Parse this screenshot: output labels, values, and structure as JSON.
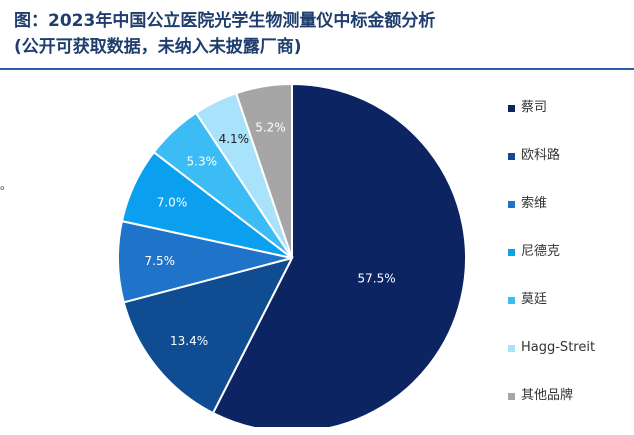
{
  "title": {
    "line1": "图：2023年中国公立医院光学生物测量仪中标金额分析",
    "line2": "(公开可获取数据，未纳入未披露厂商)"
  },
  "side_mark": "。",
  "chart_data": {
    "type": "pie",
    "title": "图：2023年中国公立医院光学生物测量仪中标金额分析",
    "subtitle": "(公开可获取数据，未纳入未披露厂商)",
    "legend_position": "right",
    "slices": [
      {
        "label": "蔡司",
        "value": 57.5,
        "display": "57.5%",
        "color": "#0c2461",
        "text_color": "#ffffff"
      },
      {
        "label": "欧科路",
        "value": 13.4,
        "display": "13.4%",
        "color": "#0f4c92",
        "text_color": "#ffffff"
      },
      {
        "label": "索维",
        "value": 7.5,
        "display": "7.5%",
        "color": "#1f74c9",
        "text_color": "#ffffff"
      },
      {
        "label": "尼德克",
        "value": 7.0,
        "display": "7.0%",
        "color": "#0a9fef",
        "text_color": "#ffffff"
      },
      {
        "label": "莫廷",
        "value": 5.3,
        "display": "5.3%",
        "color": "#3bbcf5",
        "text_color": "#ffffff"
      },
      {
        "label": "Hagg-Streit",
        "value": 4.1,
        "display": "4.1%",
        "color": "#a9e3fb",
        "text_color": "#222222"
      },
      {
        "label": "其他品牌",
        "value": 5.2,
        "display": "5.2%",
        "color": "#a6a6a6",
        "text_color": "#ffffff"
      }
    ]
  }
}
